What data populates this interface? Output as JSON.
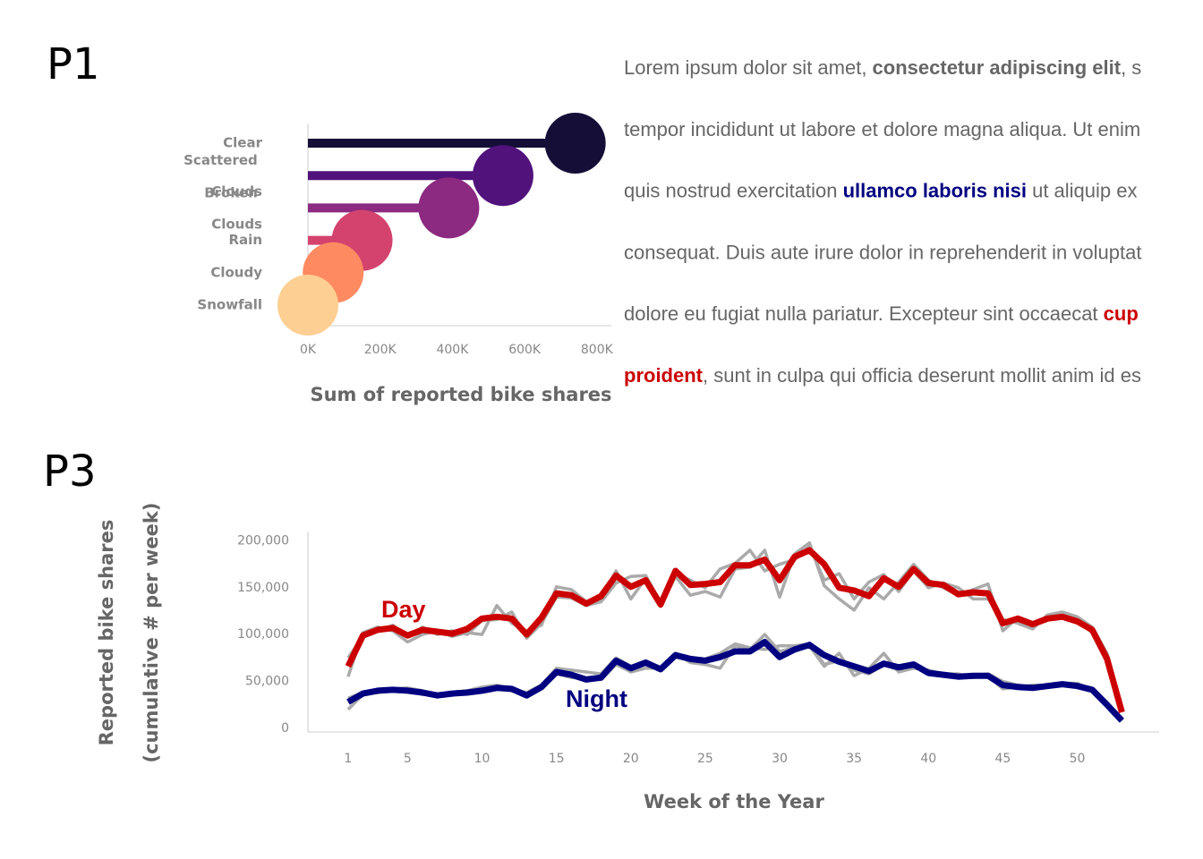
{
  "panel_labels": [
    "P1",
    "P3"
  ],
  "paragraph": [
    [
      {
        "text": "Lorem ipsum dolor sit amet, ",
        "style": "normal",
        "color": "#666666"
      },
      {
        "text": "consectetur adipiscing elit",
        "style": "bold",
        "color": "#666666"
      },
      {
        "text": ", s",
        "style": "normal",
        "color": "#666666"
      }
    ],
    [
      {
        "text": "tempor incididunt ut labore et dolore magna aliqua. Ut enim",
        "style": "normal",
        "color": "#666666"
      }
    ],
    [
      {
        "text": "quis nostrud exercitation ",
        "style": "normal",
        "color": "#666666"
      },
      {
        "text": "ullamco laboris nisi",
        "style": "bold",
        "color": "#000080"
      },
      {
        "text": " ut aliquip ex",
        "style": "normal",
        "color": "#666666"
      }
    ],
    [
      {
        "text": "consequat. Duis aute irure dolor in reprehenderit in voluptat",
        "style": "normal",
        "color": "#666666"
      }
    ],
    [
      {
        "text": "dolore eu fugiat nulla pariatur. Excepteur sint occaecat ",
        "style": "normal",
        "color": "#666666"
      },
      {
        "text": "cup",
        "style": "bold",
        "color": "#cc0000"
      }
    ],
    [
      {
        "text": "proident",
        "style": "bold",
        "color": "#cc0000"
      },
      {
        "text": ", sunt in culpa qui officia deserunt mollit anim id es",
        "style": "normal",
        "color": "#666666"
      }
    ]
  ],
  "chart_data": [
    {
      "type": "lollipop",
      "xlabel": "Sum of reported bike shares",
      "categories": [
        "Clear",
        "Scattered Clouds",
        "Broken Clouds",
        "Rain",
        "Cloudy",
        "Snowfall"
      ],
      "values": [
        740000,
        540000,
        390000,
        150000,
        70000,
        0
      ],
      "colors": [
        "#150e37",
        "#51127c",
        "#8c2981",
        "#d3436e",
        "#fe8a62",
        "#fecf92"
      ],
      "xlim": [
        0,
        840000
      ],
      "xticks": [
        {
          "value": 0,
          "label": "0K"
        },
        {
          "value": 200000,
          "label": "200K"
        },
        {
          "value": 400000,
          "label": "400K"
        },
        {
          "value": 600000,
          "label": "600K"
        },
        {
          "value": 800000,
          "label": "800K"
        }
      ]
    },
    {
      "type": "line",
      "xlabel": "Week of the Year",
      "ylabel": [
        "Reported bike shares",
        "(cumulative # per week)"
      ],
      "x": [
        1,
        2,
        3,
        4,
        5,
        6,
        7,
        8,
        9,
        10,
        11,
        12,
        13,
        14,
        15,
        16,
        17,
        18,
        19,
        20,
        21,
        22,
        23,
        24,
        25,
        26,
        27,
        28,
        29,
        30,
        31,
        32,
        33,
        34,
        35,
        36,
        37,
        38,
        39,
        40,
        41,
        42,
        43,
        44,
        45,
        46,
        47,
        48,
        49,
        50,
        51,
        52,
        53
      ],
      "series": [
        {
          "color": "#aaaaaa",
          "values": [
            55000,
            102000,
            108000,
            104000,
            92000,
            100000,
            104000,
            98000,
            102000,
            100000,
            131000,
            112000,
            104000,
            110000,
            151000,
            148000,
            135000,
            138000,
            168000,
            138000,
            160000,
            130000,
            162000,
            142000,
            146000,
            140000,
            170000,
            172000,
            190000,
            140000,
            186000,
            198000,
            152000,
            138000,
            126000,
            150000,
            138000,
            156000,
            175000,
            158000,
            150000,
            142000,
            148000,
            154000,
            104000,
            118000,
            108000,
            119000,
            121000,
            115000,
            102000,
            72000,
            20000
          ]
        },
        {
          "color": "#aaaaaa",
          "values": [
            75000,
            98000,
            104000,
            110000,
            98000,
            108000,
            100000,
            104000,
            100000,
            115000,
            116000,
            124000,
            96000,
            112000,
            140000,
            139000,
            131000,
            135000,
            155000,
            162000,
            163000,
            134000,
            165000,
            158000,
            150000,
            170000,
            176000,
            190000,
            168000,
            175000,
            180000,
            194000,
            158000,
            165000,
            138000,
            156000,
            164000,
            146000,
            168000,
            150000,
            155000,
            150000,
            138000,
            138000,
            116000,
            112000,
            106000,
            121000,
            124000,
            119000,
            108000,
            80000,
            22000
          ]
        },
        {
          "color": "#aaaaaa",
          "values": [
            20000,
            36000,
            41000,
            42000,
            43000,
            40000,
            36000,
            38000,
            40000,
            44000,
            46000,
            42000,
            38000,
            46000,
            58000,
            54000,
            53000,
            52000,
            68000,
            60000,
            64000,
            64000,
            80000,
            70000,
            68000,
            64000,
            88000,
            84000,
            100000,
            82000,
            86000,
            88000,
            66000,
            80000,
            56000,
            64000,
            80000,
            60000,
            64000,
            62000,
            58000,
            58000,
            54000,
            56000,
            42000,
            44000,
            46000,
            46000,
            48000,
            48000,
            40000,
            26000,
            8000
          ]
        },
        {
          "color": "#aaaaaa",
          "values": [
            32000,
            38000,
            38000,
            40000,
            40000,
            36000,
            36000,
            37000,
            38000,
            42000,
            42000,
            40000,
            36000,
            46000,
            64000,
            62000,
            60000,
            58000,
            75000,
            66000,
            72000,
            62000,
            76000,
            72000,
            74000,
            80000,
            90000,
            86000,
            84000,
            88000,
            88000,
            90000,
            68000,
            72000,
            62000,
            58000,
            68000,
            62000,
            66000,
            60000,
            58000,
            56000,
            56000,
            58000,
            50000,
            46000,
            44000,
            46000,
            48000,
            46000,
            42000,
            24000,
            10000
          ]
        },
        {
          "name": "Day",
          "color": "#cc0000",
          "values": [
            66000,
            99000,
            105000,
            107000,
            99000,
            105000,
            103000,
            101000,
            106000,
            117000,
            119000,
            117000,
            100000,
            118000,
            144000,
            142000,
            133000,
            141000,
            163000,
            151000,
            158000,
            132000,
            168000,
            153000,
            154000,
            156000,
            174000,
            174000,
            180000,
            158000,
            183000,
            190000,
            175000,
            150000,
            147000,
            141000,
            160000,
            151000,
            170000,
            155000,
            153000,
            143000,
            145000,
            144000,
            112000,
            117000,
            111000,
            117000,
            119000,
            114000,
            105000,
            74000,
            17000
          ]
        },
        {
          "name": "Night",
          "color": "#000080",
          "values": [
            28000,
            37000,
            40000,
            41000,
            40000,
            38000,
            35000,
            37000,
            38000,
            40000,
            43000,
            42000,
            35000,
            44000,
            60000,
            57000,
            52000,
            54000,
            72000,
            64000,
            70000,
            63000,
            78000,
            74000,
            72000,
            76000,
            82000,
            82000,
            92000,
            76000,
            84000,
            89000,
            78000,
            71000,
            66000,
            61000,
            69000,
            65000,
            68000,
            59000,
            57000,
            55000,
            56000,
            56000,
            46000,
            44000,
            43000,
            45000,
            47000,
            45000,
            41000,
            25000,
            8000
          ]
        }
      ],
      "xlim": [
        -1.7,
        55.5
      ],
      "ylim": [
        -4000,
        210000
      ],
      "xticks": [
        1,
        5,
        10,
        15,
        20,
        25,
        30,
        35,
        40,
        45,
        50
      ],
      "yticks": [
        0,
        {
          "value": 50000,
          "label": "50,000"
        },
        {
          "value": 100000,
          "label": "100,000"
        },
        {
          "value": 150000,
          "label": "150,000"
        },
        {
          "value": 200000,
          "label": "200,000"
        }
      ]
    }
  ]
}
